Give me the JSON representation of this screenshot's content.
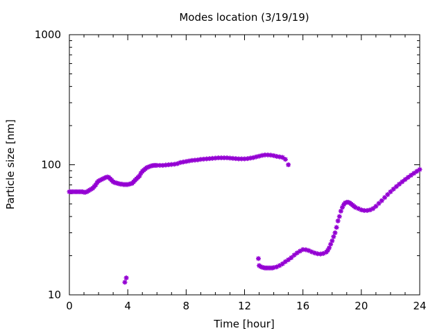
{
  "chart_data": {
    "type": "scatter",
    "title": "Modes location (3/19/19)",
    "xlabel": "Time [hour]",
    "ylabel": "Particle size [nm]",
    "xlim": [
      0,
      24
    ],
    "ylim": [
      10,
      1000
    ],
    "yscale": "log",
    "xticks": [
      0,
      4,
      8,
      12,
      16,
      20,
      24
    ],
    "yticks": [
      10,
      100,
      1000
    ],
    "grid": false,
    "marker_color": "#9400d3",
    "series": [
      {
        "points": [
          [
            0.0,
            62
          ],
          [
            0.1,
            62
          ],
          [
            0.2,
            62
          ],
          [
            0.3,
            62
          ],
          [
            0.4,
            62
          ],
          [
            0.5,
            62
          ],
          [
            0.6,
            62
          ],
          [
            0.7,
            62
          ],
          [
            0.8,
            62
          ],
          [
            0.9,
            62
          ],
          [
            1.0,
            61.5
          ],
          [
            1.1,
            61.5
          ],
          [
            1.2,
            62
          ],
          [
            1.3,
            63
          ],
          [
            1.4,
            64
          ],
          [
            1.5,
            65
          ],
          [
            1.6,
            66
          ],
          [
            1.7,
            68
          ],
          [
            1.8,
            70
          ],
          [
            1.9,
            73
          ],
          [
            2.0,
            75
          ],
          [
            2.1,
            76
          ],
          [
            2.2,
            77
          ],
          [
            2.3,
            78
          ],
          [
            2.4,
            79
          ],
          [
            2.5,
            80
          ],
          [
            2.6,
            80.5
          ],
          [
            2.7,
            80
          ],
          [
            2.8,
            78
          ],
          [
            2.9,
            76
          ],
          [
            3.0,
            74
          ],
          [
            3.1,
            73
          ],
          [
            3.2,
            72.5
          ],
          [
            3.3,
            72
          ],
          [
            3.4,
            71.5
          ],
          [
            3.5,
            71
          ],
          [
            3.6,
            71
          ],
          [
            3.7,
            70.5
          ],
          [
            3.8,
            70.5
          ],
          [
            3.9,
            70.5
          ],
          [
            4.0,
            70.5
          ],
          [
            4.1,
            71
          ],
          [
            4.2,
            71.5
          ],
          [
            4.3,
            72
          ],
          [
            4.4,
            74
          ],
          [
            4.5,
            76
          ],
          [
            4.6,
            78
          ],
          [
            4.7,
            80
          ],
          [
            4.8,
            82
          ],
          [
            4.9,
            86
          ],
          [
            5.0,
            89
          ],
          [
            5.1,
            91
          ],
          [
            5.2,
            93
          ],
          [
            5.3,
            95
          ],
          [
            5.4,
            96
          ],
          [
            5.5,
            97
          ],
          [
            5.6,
            98
          ],
          [
            5.7,
            98.5
          ],
          [
            5.8,
            99
          ],
          [
            5.9,
            99
          ],
          [
            6.0,
            99
          ],
          [
            6.2,
            99
          ],
          [
            6.4,
            99
          ],
          [
            6.6,
            99.5
          ],
          [
            6.8,
            100
          ],
          [
            7.0,
            100.5
          ],
          [
            7.2,
            101
          ],
          [
            7.4,
            102
          ],
          [
            7.6,
            104
          ],
          [
            7.8,
            105
          ],
          [
            8.0,
            106
          ],
          [
            8.2,
            107
          ],
          [
            8.4,
            108
          ],
          [
            8.6,
            108.5
          ],
          [
            8.8,
            109
          ],
          [
            9.0,
            110
          ],
          [
            9.2,
            110.5
          ],
          [
            9.4,
            111
          ],
          [
            9.6,
            111.5
          ],
          [
            9.8,
            112
          ],
          [
            10.0,
            112.5
          ],
          [
            10.2,
            113
          ],
          [
            10.4,
            113
          ],
          [
            10.6,
            113
          ],
          [
            10.8,
            113
          ],
          [
            11.0,
            112.5
          ],
          [
            11.2,
            112
          ],
          [
            11.4,
            111.5
          ],
          [
            11.6,
            111
          ],
          [
            11.8,
            111
          ],
          [
            12.0,
            111
          ],
          [
            12.2,
            111.5
          ],
          [
            12.4,
            112.5
          ],
          [
            12.6,
            113.5
          ],
          [
            12.8,
            115
          ],
          [
            13.0,
            116.5
          ],
          [
            13.2,
            118
          ],
          [
            13.4,
            119
          ],
          [
            13.6,
            119
          ],
          [
            13.8,
            118.5
          ],
          [
            14.0,
            117.5
          ],
          [
            14.2,
            116
          ],
          [
            14.4,
            115
          ],
          [
            14.6,
            114
          ],
          [
            14.8,
            110
          ],
          [
            15.0,
            100
          ],
          [
            3.8,
            12.5
          ],
          [
            3.9,
            13.5
          ],
          [
            12.95,
            19
          ],
          [
            13.0,
            16.8
          ],
          [
            13.1,
            16.5
          ],
          [
            13.2,
            16.3
          ],
          [
            13.3,
            16.2
          ],
          [
            13.4,
            16.1
          ],
          [
            13.5,
            16.1
          ],
          [
            13.6,
            16.1
          ],
          [
            13.7,
            16.1
          ],
          [
            13.8,
            16.1
          ],
          [
            13.9,
            16.1
          ],
          [
            14.0,
            16.2
          ],
          [
            14.2,
            16.4
          ],
          [
            14.4,
            16.8
          ],
          [
            14.6,
            17.3
          ],
          [
            14.8,
            18
          ],
          [
            15.0,
            18.6
          ],
          [
            15.2,
            19.3
          ],
          [
            15.4,
            20.2
          ],
          [
            15.6,
            21
          ],
          [
            15.8,
            21.7
          ],
          [
            16.0,
            22.3
          ],
          [
            16.2,
            22.2
          ],
          [
            16.4,
            21.9
          ],
          [
            16.6,
            21.4
          ],
          [
            16.8,
            21
          ],
          [
            17.0,
            20.7
          ],
          [
            17.2,
            20.6
          ],
          [
            17.4,
            20.8
          ],
          [
            17.6,
            21.3
          ],
          [
            17.7,
            22
          ],
          [
            17.8,
            23
          ],
          [
            17.9,
            24.5
          ],
          [
            18.0,
            26
          ],
          [
            18.1,
            28
          ],
          [
            18.2,
            30
          ],
          [
            18.3,
            33
          ],
          [
            18.4,
            37
          ],
          [
            18.5,
            40
          ],
          [
            18.6,
            44
          ],
          [
            18.7,
            47
          ],
          [
            18.8,
            49.5
          ],
          [
            18.9,
            51
          ],
          [
            19.0,
            51.5
          ],
          [
            19.1,
            51.5
          ],
          [
            19.2,
            51
          ],
          [
            19.3,
            50
          ],
          [
            19.4,
            49
          ],
          [
            19.5,
            48
          ],
          [
            19.6,
            47
          ],
          [
            19.8,
            46
          ],
          [
            20.0,
            45
          ],
          [
            20.2,
            44.5
          ],
          [
            20.4,
            44.5
          ],
          [
            20.6,
            45
          ],
          [
            20.8,
            46
          ],
          [
            21.0,
            48
          ],
          [
            21.2,
            50.5
          ],
          [
            21.4,
            53
          ],
          [
            21.6,
            56
          ],
          [
            21.8,
            59
          ],
          [
            22.0,
            62
          ],
          [
            22.2,
            65
          ],
          [
            22.4,
            68
          ],
          [
            22.6,
            71
          ],
          [
            22.8,
            74
          ],
          [
            23.0,
            77
          ],
          [
            23.2,
            80
          ],
          [
            23.4,
            83
          ],
          [
            23.6,
            86
          ],
          [
            23.8,
            89
          ],
          [
            24.0,
            92
          ]
        ]
      }
    ]
  }
}
